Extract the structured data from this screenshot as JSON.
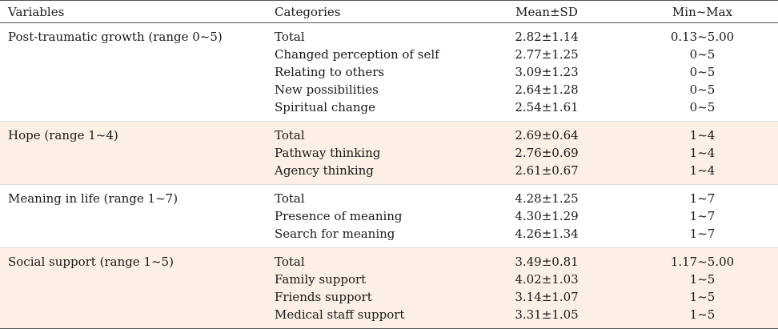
{
  "headers": [
    "Variables",
    "Categories",
    "Mean±SD",
    "Min~Max"
  ],
  "groups": [
    {
      "variable": "Post-traumatic growth (range 0~5)",
      "rows": [
        {
          "category": "Total",
          "mean_sd": "2.82±1.14",
          "min_max": "0.13~5.00"
        },
        {
          "category": "Changed perception of self",
          "mean_sd": "2.77±1.25",
          "min_max": "0~5"
        },
        {
          "category": "Relating to others",
          "mean_sd": "3.09±1.23",
          "min_max": "0~5"
        },
        {
          "category": "New possibilities",
          "mean_sd": "2.64±1.28",
          "min_max": "0~5"
        },
        {
          "category": "Spiritual change",
          "mean_sd": "2.54±1.61",
          "min_max": "0~5"
        }
      ]
    },
    {
      "variable": "Hope (range 1~4)",
      "rows": [
        {
          "category": "Total",
          "mean_sd": "2.69±0.64",
          "min_max": "1~4"
        },
        {
          "category": "Pathway thinking",
          "mean_sd": "2.76±0.69",
          "min_max": "1~4"
        },
        {
          "category": "Agency thinking",
          "mean_sd": "2.61±0.67",
          "min_max": "1~4"
        }
      ]
    },
    {
      "variable": "Meaning in life (range 1~7)",
      "rows": [
        {
          "category": "Total",
          "mean_sd": "4.28±1.25",
          "min_max": "1~7"
        },
        {
          "category": "Presence of meaning",
          "mean_sd": "4.30±1.29",
          "min_max": "1~7"
        },
        {
          "category": "Search for meaning",
          "mean_sd": "4.26±1.34",
          "min_max": "1~7"
        }
      ]
    },
    {
      "variable": "Social support (range 1~5)",
      "rows": [
        {
          "category": "Total",
          "mean_sd": "3.49±0.81",
          "min_max": "1.17~5.00"
        },
        {
          "category": "Family support",
          "mean_sd": "4.02±1.03",
          "min_max": "1~5"
        },
        {
          "category": "Friends support",
          "mean_sd": "3.14±1.07",
          "min_max": "1~5"
        },
        {
          "category": "Medical staff support",
          "mean_sd": "3.31±1.05",
          "min_max": "1~5"
        }
      ]
    }
  ],
  "colors": {
    "shade": "#fcefe3",
    "rule": "#555555",
    "text": "#1a1a1a"
  }
}
